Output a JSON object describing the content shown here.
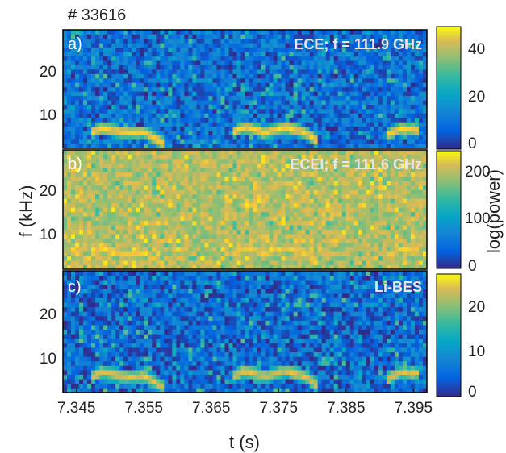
{
  "figure": {
    "shot_label": "# 33616",
    "shared_ylabel": "f (kHz)",
    "shared_xlabel": "t (s)",
    "colorbar_shared_label": "log(power)"
  },
  "chart_data": [
    {
      "type": "heatmap",
      "panel": "a)",
      "title": "ECE; f = 111.9 GHz",
      "xlabel": "",
      "ylabel": "",
      "xlim": [
        7.343,
        7.397
      ],
      "ylim": [
        3,
        30
      ],
      "x_ticks": [],
      "x_tick_labels": [],
      "y_ticks": [
        10,
        20
      ],
      "y_tick_labels": [
        "10",
        "20"
      ],
      "colorbar": {
        "ticks": [
          0,
          20,
          40
        ],
        "tick_labels": [
          "0",
          "20",
          "40"
        ],
        "range": [
          0,
          50
        ]
      },
      "mode_f_kHz": [
        [
          7.347,
          6.5
        ],
        [
          7.349,
          7.6
        ],
        [
          7.352,
          6.6
        ],
        [
          7.355,
          6.8
        ],
        [
          7.358,
          4.0
        ],
        [
          7.368,
          6.5
        ],
        [
          7.37,
          8.0
        ],
        [
          7.373,
          6.6
        ],
        [
          7.376,
          8.0
        ],
        [
          7.379,
          6.5
        ],
        [
          7.381,
          4.5
        ],
        [
          7.391,
          6.0
        ],
        [
          7.393,
          7.5
        ],
        [
          7.396,
          7.2
        ]
      ],
      "background_level": 6,
      "mode_level": 45,
      "noise_level": 14
    },
    {
      "type": "heatmap",
      "panel": "b)",
      "title": "ECEI; f = 111.6 GHz",
      "xlabel": "",
      "ylabel": "",
      "xlim": [
        7.343,
        7.397
      ],
      "ylim": [
        3,
        30
      ],
      "x_ticks": [],
      "x_tick_labels": [],
      "y_ticks": [
        10,
        20
      ],
      "y_tick_labels": [
        "10",
        "20"
      ],
      "colorbar": {
        "ticks": [
          0,
          100,
          200
        ],
        "tick_labels": [
          "0",
          "100",
          "200"
        ],
        "range": [
          0,
          250
        ]
      },
      "mode_f_kHz": [
        [
          7.347,
          6.5
        ],
        [
          7.349,
          7.6
        ],
        [
          7.352,
          6.6
        ],
        [
          7.355,
          6.8
        ],
        [
          7.358,
          4.0
        ],
        [
          7.368,
          6.5
        ],
        [
          7.37,
          8.0
        ],
        [
          7.373,
          6.6
        ],
        [
          7.376,
          8.0
        ],
        [
          7.379,
          6.5
        ],
        [
          7.381,
          4.5
        ],
        [
          7.391,
          6.0
        ],
        [
          7.393,
          7.5
        ],
        [
          7.396,
          7.2
        ]
      ],
      "background_level": 160,
      "mode_level": 225,
      "noise_level": 50
    },
    {
      "type": "heatmap",
      "panel": "c)",
      "title": "Li-BES",
      "xlabel": "t (s)",
      "ylabel": "",
      "xlim": [
        7.343,
        7.397
      ],
      "ylim": [
        3,
        30
      ],
      "x_ticks": [
        7.345,
        7.355,
        7.365,
        7.375,
        7.385,
        7.395
      ],
      "x_tick_labels": [
        "7.345",
        "7.355",
        "7.365",
        "7.375",
        "7.385",
        "7.395"
      ],
      "y_ticks": [
        10,
        20
      ],
      "y_tick_labels": [
        "10",
        "20"
      ],
      "colorbar": {
        "ticks": [
          0,
          10,
          20
        ],
        "tick_labels": [
          "0",
          "10",
          "20"
        ],
        "range": [
          0,
          30
        ]
      },
      "mode_f_kHz": [
        [
          7.347,
          6.5
        ],
        [
          7.349,
          7.6
        ],
        [
          7.352,
          6.6
        ],
        [
          7.355,
          6.8
        ],
        [
          7.358,
          4.0
        ],
        [
          7.368,
          6.5
        ],
        [
          7.37,
          8.0
        ],
        [
          7.373,
          6.6
        ],
        [
          7.376,
          8.0
        ],
        [
          7.379,
          6.5
        ],
        [
          7.381,
          4.5
        ],
        [
          7.391,
          6.0
        ],
        [
          7.393,
          7.5
        ],
        [
          7.396,
          7.2
        ]
      ],
      "background_level": 3,
      "mode_level": 24,
      "noise_level": 9
    }
  ]
}
